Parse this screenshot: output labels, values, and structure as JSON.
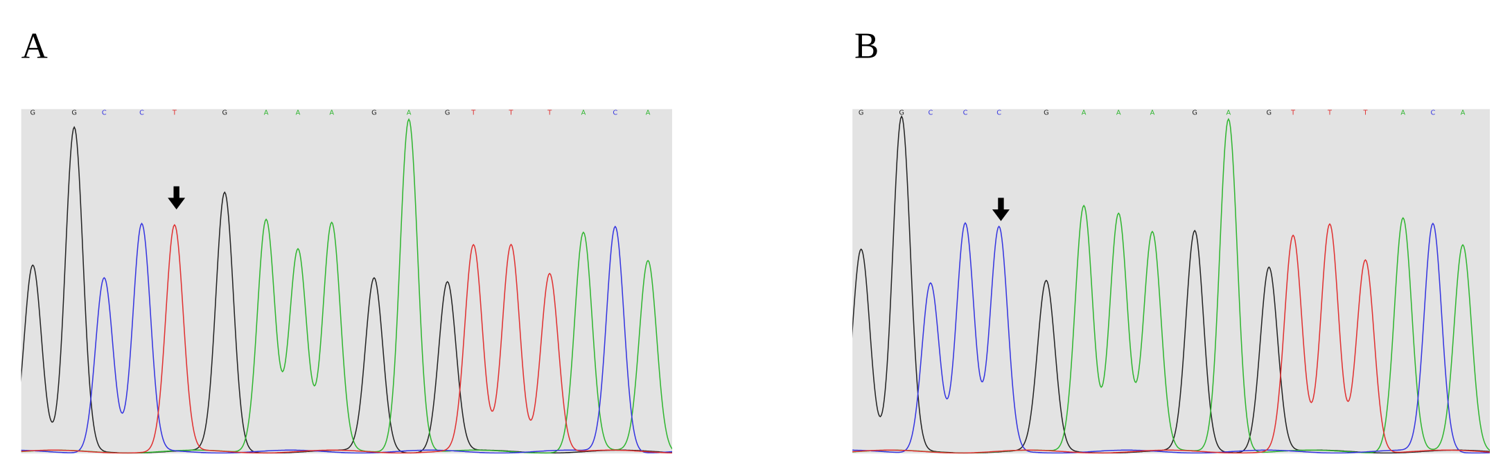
{
  "panels": [
    {
      "label": "A",
      "bases": [
        "G",
        "G",
        "C",
        "C",
        "T",
        "G",
        "A",
        "A",
        "A",
        "G",
        "A",
        "G",
        "T",
        "T",
        "T",
        "A",
        "C",
        "A"
      ]
    },
    {
      "label": "B",
      "bases": [
        "G",
        "G",
        "C",
        "C",
        "C",
        "G",
        "A",
        "A",
        "A",
        "G",
        "A",
        "G",
        "T",
        "T",
        "T",
        "A",
        "C",
        "A"
      ]
    }
  ],
  "base_colors": {
    "G": "#222222",
    "A": "#2fb52f",
    "C": "#3434e0",
    "T": "#e03030"
  }
}
